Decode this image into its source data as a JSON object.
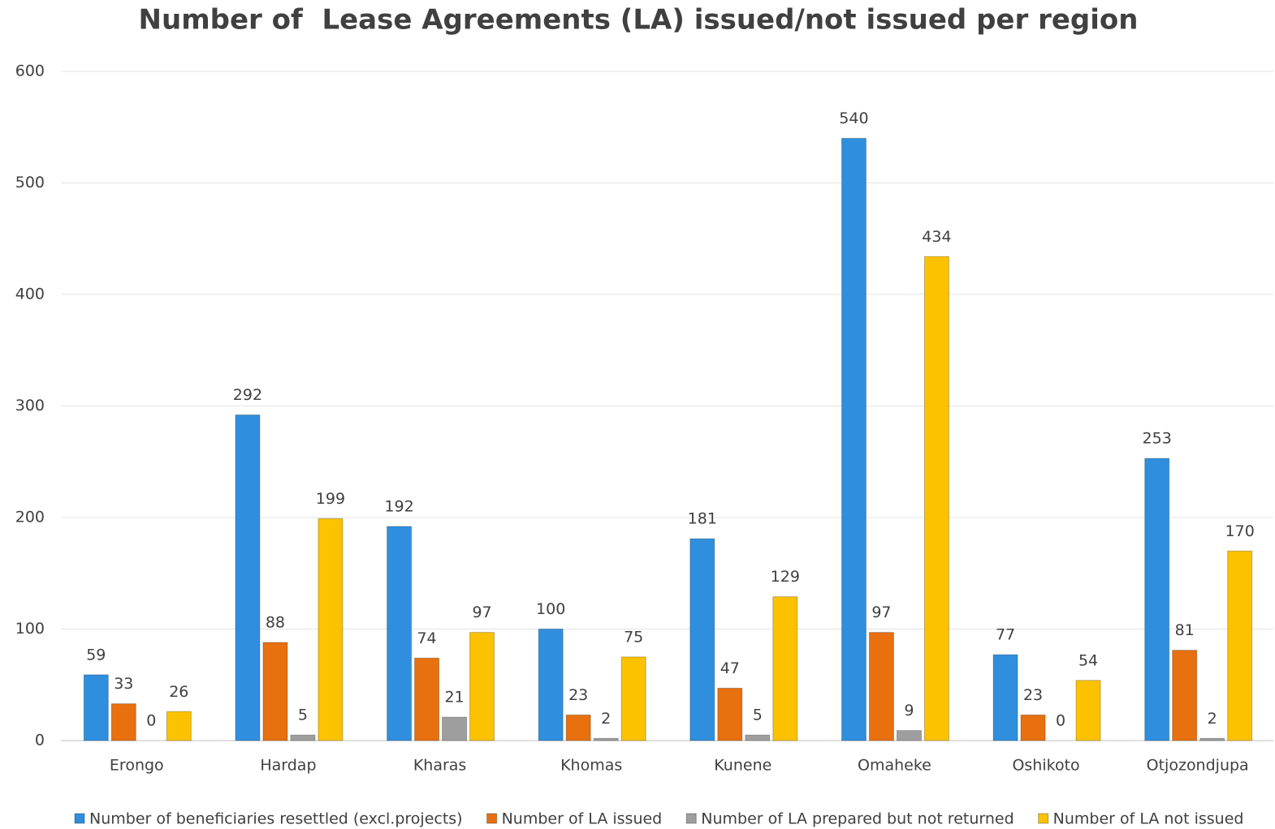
{
  "chart_data": {
    "type": "bar",
    "title": "Number of  Lease Agreements (LA) issued/not issued per region",
    "categories": [
      "Erongo",
      "Hardap",
      "Kharas",
      "Khomas",
      "Kunene",
      "Omaheke",
      "Oshikoto",
      "Otjozondjupa"
    ],
    "series": [
      {
        "name": "Number of beneficiaries resettled (excl.projects)",
        "color": "#2f8fde",
        "values": [
          59,
          292,
          192,
          100,
          181,
          540,
          77,
          253
        ]
      },
      {
        "name": "Number of LA issued",
        "color": "#e8700f",
        "values": [
          33,
          88,
          74,
          23,
          47,
          97,
          23,
          81
        ]
      },
      {
        "name": "Number of LA prepared but not returned",
        "color": "#9e9e9e",
        "values": [
          0,
          5,
          21,
          2,
          5,
          9,
          0,
          2
        ]
      },
      {
        "name": "Number of LA not issued",
        "color": "#fcc200",
        "values": [
          26,
          199,
          97,
          75,
          129,
          434,
          54,
          170
        ]
      }
    ],
    "ylim": [
      0,
      600
    ],
    "yticks": [
      0,
      100,
      200,
      300,
      400,
      500,
      600
    ],
    "grid": true,
    "legend": "bottom"
  }
}
